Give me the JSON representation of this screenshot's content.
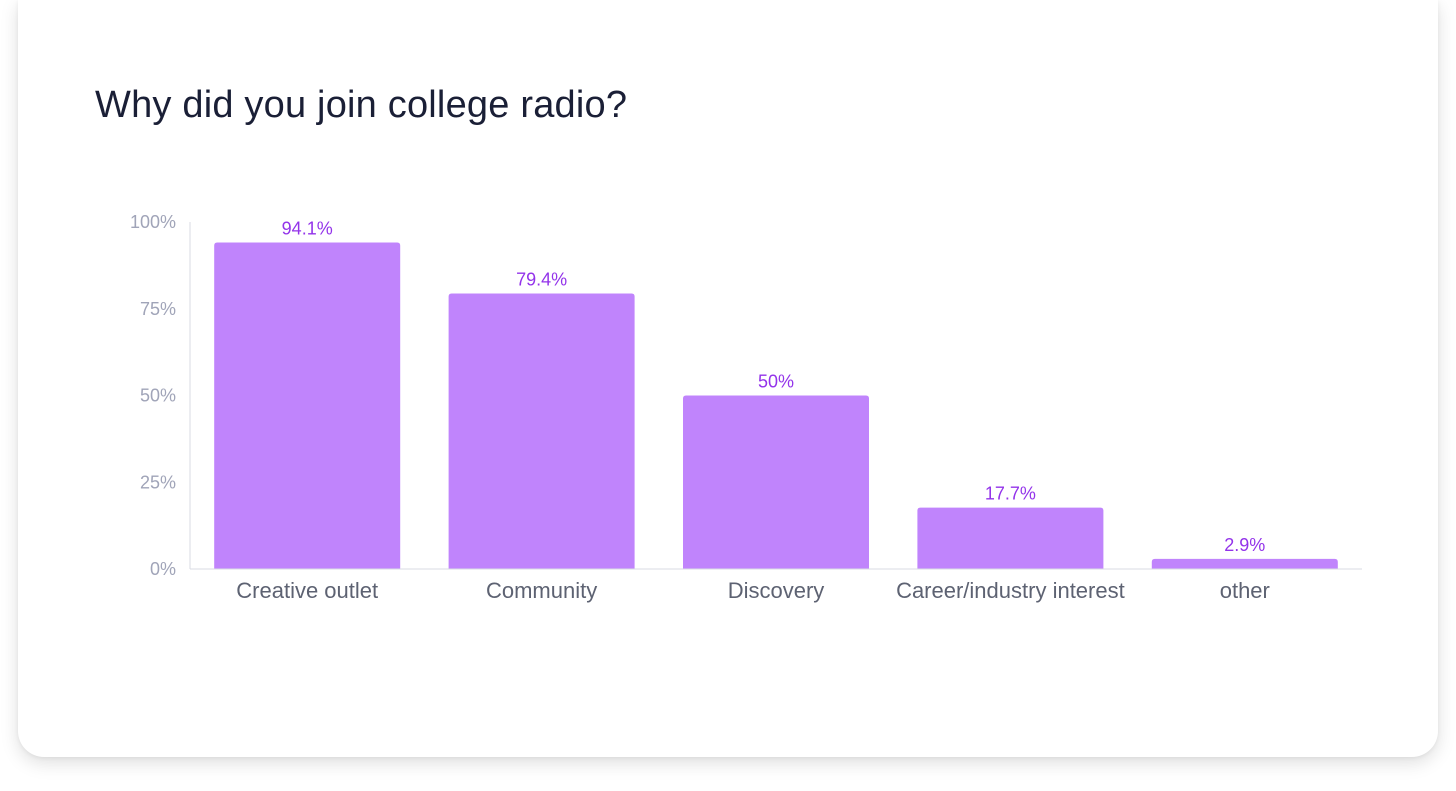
{
  "chart_data": {
    "type": "bar",
    "title": "Why did you join college radio?",
    "categories": [
      "Creative outlet",
      "Community",
      "Discovery",
      "Career/industry interest",
      "other"
    ],
    "values": [
      94.1,
      79.4,
      50,
      17.7,
      2.9
    ],
    "data_labels": [
      "94.1%",
      "79.4%",
      "50%",
      "17.7%",
      "2.9%"
    ],
    "yticks": [
      "0%",
      "25%",
      "50%",
      "75%",
      "100%"
    ],
    "ylim": [
      0,
      100
    ],
    "xlabel": "",
    "ylabel": "",
    "grid": false,
    "colors": {
      "bar": "#c084fc",
      "data_label": "#9333ea",
      "axis": "#d9dbe3"
    }
  }
}
